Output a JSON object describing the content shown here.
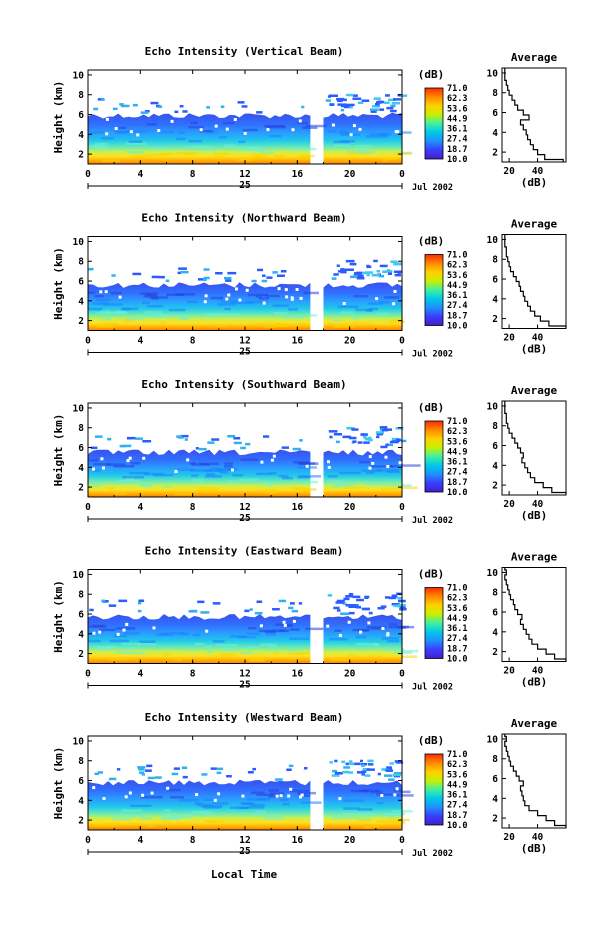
{
  "figure": {
    "x_axis_title": "Local Time",
    "colorbar_unit": "(dB)",
    "colorbar_ticks": [
      "71.0",
      "62.3",
      "53.6",
      "44.9",
      "36.1",
      "27.4",
      "18.7",
      "10.0"
    ],
    "colorbar_colors": [
      "#ff2a00",
      "#ff8a00",
      "#ffd000",
      "#c8f000",
      "#40f0a0",
      "#00c8e8",
      "#1e90ff",
      "#3c3cff",
      "#4020c8"
    ],
    "average_title": "Average",
    "average_xlabel": "(dB)",
    "average_xticks": [
      "20",
      "40"
    ],
    "date_mark": "25",
    "date_label": "Jul 2002"
  },
  "chart_data": [
    {
      "type": "heatmap",
      "title": "Echo Intensity (Vertical Beam)",
      "xlabel": "",
      "ylabel": "Height (km)",
      "x_ticks": [
        "0",
        "4",
        "8",
        "12",
        "16",
        "20",
        "0"
      ],
      "y_ticks": [
        "2",
        "4",
        "6",
        "8",
        "10"
      ],
      "xlim": [
        0,
        24
      ],
      "ylim": [
        1,
        10.5
      ],
      "data_gap_hours": [
        17.0,
        18.0
      ],
      "echo_top_km": 5.9,
      "color_scale_db": [
        10.0,
        71.0
      ],
      "average_profile": {
        "xlim_db": [
          15,
          60
        ],
        "db": [
          58,
          45,
          40,
          37,
          35,
          33,
          32,
          30,
          28,
          34,
          30,
          26,
          24,
          22,
          20,
          19,
          18,
          17,
          17,
          17
        ],
        "height_km": [
          1.0,
          1.5,
          2.0,
          2.5,
          3.0,
          3.5,
          4.0,
          4.5,
          5.0,
          5.5,
          6.0,
          6.5,
          7.0,
          7.5,
          8.0,
          8.5,
          9.0,
          9.5,
          10.0,
          10.5
        ]
      }
    },
    {
      "type": "heatmap",
      "title": "Echo Intensity (Northward Beam)",
      "xlabel": "",
      "ylabel": "Height (km)",
      "x_ticks": [
        "0",
        "4",
        "8",
        "12",
        "16",
        "20",
        "0"
      ],
      "y_ticks": [
        "2",
        "4",
        "6",
        "8",
        "10"
      ],
      "xlim": [
        0,
        24
      ],
      "ylim": [
        1,
        10.5
      ],
      "data_gap_hours": [
        17.0,
        18.0
      ],
      "echo_top_km": 5.6,
      "color_scale_db": [
        10.0,
        71.0
      ],
      "average_profile": {
        "xlim_db": [
          15,
          60
        ],
        "db": [
          60,
          48,
          42,
          38,
          35,
          33,
          31,
          30,
          28,
          27,
          25,
          23,
          21,
          20,
          19,
          18,
          18,
          17,
          17,
          17
        ],
        "height_km": [
          1.0,
          1.5,
          2.0,
          2.5,
          3.0,
          3.5,
          4.0,
          4.5,
          5.0,
          5.5,
          6.0,
          6.5,
          7.0,
          7.5,
          8.0,
          8.5,
          9.0,
          9.5,
          10.0,
          10.5
        ]
      }
    },
    {
      "type": "heatmap",
      "title": "Echo Intensity (Southward Beam)",
      "xlabel": "",
      "ylabel": "Height (km)",
      "x_ticks": [
        "0",
        "4",
        "8",
        "12",
        "16",
        "20",
        "0"
      ],
      "y_ticks": [
        "2",
        "4",
        "6",
        "8",
        "10"
      ],
      "xlim": [
        0,
        24
      ],
      "ylim": [
        1,
        10.5
      ],
      "data_gap_hours": [
        17.0,
        18.0
      ],
      "echo_top_km": 5.5,
      "color_scale_db": [
        10.0,
        71.0
      ],
      "average_profile": {
        "xlim_db": [
          15,
          60
        ],
        "db": [
          60,
          50,
          44,
          38,
          35,
          33,
          31,
          29,
          30,
          28,
          26,
          24,
          22,
          20,
          19,
          18,
          18,
          17,
          17,
          17
        ],
        "height_km": [
          1.0,
          1.5,
          2.0,
          2.5,
          3.0,
          3.5,
          4.0,
          4.5,
          5.0,
          5.5,
          6.0,
          6.5,
          7.0,
          7.5,
          8.0,
          8.5,
          9.0,
          9.5,
          10.0,
          10.5
        ]
      }
    },
    {
      "type": "heatmap",
      "title": "Echo Intensity (Eastward Beam)",
      "xlabel": "",
      "ylabel": "Height (km)",
      "x_ticks": [
        "0",
        "4",
        "8",
        "12",
        "16",
        "20",
        "0"
      ],
      "y_ticks": [
        "2",
        "4",
        "6",
        "8",
        "10"
      ],
      "xlim": [
        0,
        24
      ],
      "ylim": [
        1,
        10.5
      ],
      "data_gap_hours": [
        17.0,
        18.0
      ],
      "echo_top_km": 5.7,
      "color_scale_db": [
        10.0,
        71.0
      ],
      "average_profile": {
        "xlim_db": [
          15,
          60
        ],
        "db": [
          60,
          52,
          46,
          40,
          36,
          34,
          32,
          30,
          28,
          29,
          26,
          24,
          23,
          21,
          20,
          19,
          18,
          17,
          18,
          17
        ],
        "height_km": [
          1.0,
          1.5,
          2.0,
          2.5,
          3.0,
          3.5,
          4.0,
          4.5,
          5.0,
          5.5,
          6.0,
          6.5,
          7.0,
          7.5,
          8.0,
          8.5,
          9.0,
          9.5,
          10.0,
          10.5
        ]
      }
    },
    {
      "type": "heatmap",
      "title": "Echo Intensity (Westward Beam)",
      "xlabel": "",
      "ylabel": "Height (km)",
      "x_ticks": [
        "0",
        "4",
        "8",
        "12",
        "16",
        "20",
        "0"
      ],
      "y_ticks": [
        "2",
        "4",
        "6",
        "8",
        "10"
      ],
      "xlim": [
        0,
        24
      ],
      "ylim": [
        1,
        10.5
      ],
      "data_gap_hours": [
        17.0,
        18.0
      ],
      "echo_top_km": 5.8,
      "color_scale_db": [
        10.0,
        71.0
      ],
      "average_profile": {
        "xlim_db": [
          15,
          60
        ],
        "db": [
          60,
          52,
          46,
          40,
          34,
          31,
          30,
          29,
          28,
          30,
          27,
          25,
          23,
          21,
          20,
          19,
          18,
          17,
          18,
          17
        ],
        "height_km": [
          1.0,
          1.5,
          2.0,
          2.5,
          3.0,
          3.5,
          4.0,
          4.5,
          5.0,
          5.5,
          6.0,
          6.5,
          7.0,
          7.5,
          8.0,
          8.5,
          9.0,
          9.5,
          10.0,
          10.5
        ]
      }
    }
  ]
}
